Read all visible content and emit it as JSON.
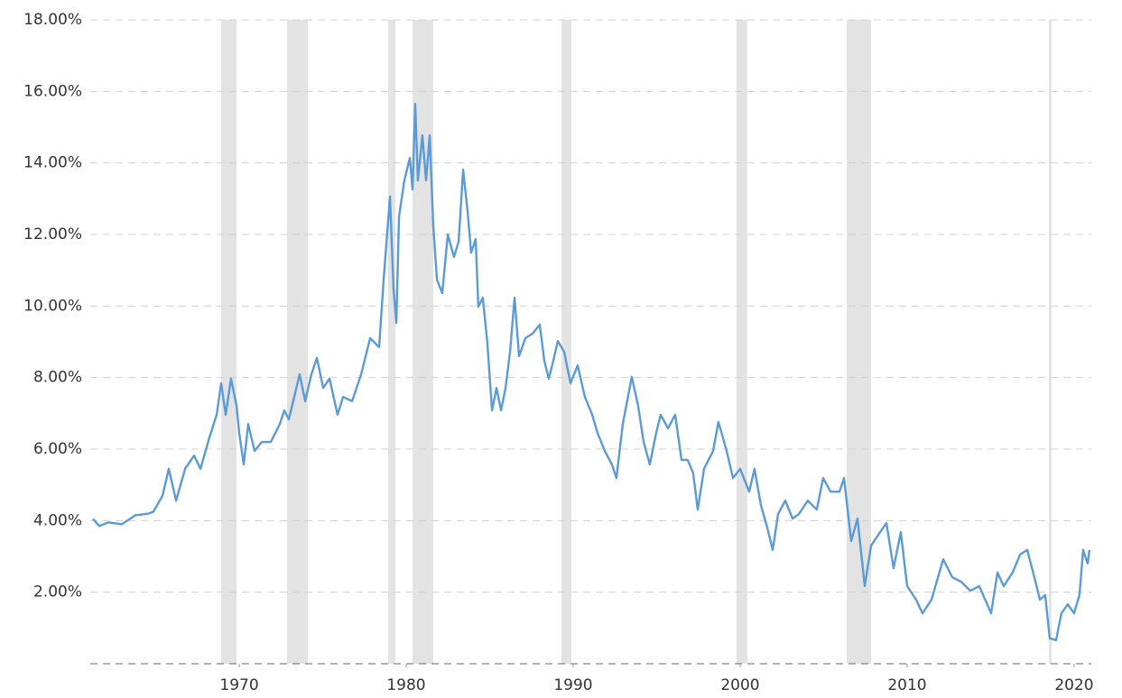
{
  "chart_data": {
    "type": "line",
    "color": "#5b9bd5",
    "band_color": "#e3e3e3",
    "grid": true,
    "xlim": [
      1961.08,
      2021.03
    ],
    "ylim": [
      0,
      18
    ],
    "xticks": [
      1970,
      1980,
      1990,
      2000,
      2010,
      2020
    ],
    "yticks": [
      {
        "value": 2,
        "label": "2.00%"
      },
      {
        "value": 4,
        "label": "4.00%"
      },
      {
        "value": 6,
        "label": "6.00%"
      },
      {
        "value": 8,
        "label": "8.00%"
      },
      {
        "value": 10,
        "label": "10.00%"
      },
      {
        "value": 12,
        "label": "12.00%"
      },
      {
        "value": 14,
        "label": "14.00%"
      },
      {
        "value": 16,
        "label": "16.00%"
      },
      {
        "value": 18,
        "label": "18.00%"
      }
    ],
    "bands": [
      [
        1968.92,
        1969.84
      ],
      [
        1972.86,
        1974.11
      ],
      [
        1978.92,
        1979.35
      ],
      [
        1980.38,
        1981.62
      ],
      [
        1989.3,
        1989.89
      ],
      [
        1999.78,
        2000.43
      ],
      [
        2006.38,
        2007.84
      ],
      [
        2018.49,
        2018.65
      ]
    ],
    "x": [
      1961.24,
      1961.62,
      1962.16,
      1962.97,
      1963.78,
      1964.59,
      1964.86,
      1965.41,
      1965.78,
      1966.22,
      1966.76,
      1967.3,
      1967.68,
      1968.22,
      1968.65,
      1968.92,
      1969.19,
      1969.51,
      1969.84,
      1970.0,
      1970.27,
      1970.54,
      1970.92,
      1971.35,
      1971.89,
      1972.43,
      1972.7,
      1972.97,
      1973.62,
      1973.95,
      1974.32,
      1974.65,
      1975.03,
      1975.41,
      1975.89,
      1976.22,
      1976.76,
      1977.3,
      1977.84,
      1978.38,
      1978.65,
      1979.03,
      1979.24,
      1979.41,
      1979.57,
      1979.89,
      1980.22,
      1980.38,
      1980.54,
      1980.7,
      1980.97,
      1981.19,
      1981.41,
      1981.62,
      1981.84,
      1982.16,
      1982.49,
      1982.86,
      1983.14,
      1983.41,
      1983.68,
      1983.89,
      1984.16,
      1984.32,
      1984.59,
      1984.86,
      1985.14,
      1985.41,
      1985.68,
      1985.95,
      1986.22,
      1986.49,
      1986.76,
      1987.14,
      1987.57,
      1988.0,
      1988.27,
      1988.54,
      1988.81,
      1989.08,
      1989.46,
      1989.84,
      1990.27,
      1990.7,
      1991.14,
      1991.46,
      1991.89,
      1992.32,
      1992.59,
      1992.97,
      1993.51,
      1993.89,
      1994.22,
      1994.59,
      1994.97,
      1995.24,
      1995.68,
      1996.11,
      1996.49,
      1996.86,
      1997.19,
      1997.46,
      1997.84,
      1998.38,
      1998.7,
      1999.19,
      1999.57,
      2000.0,
      2000.54,
      2000.86,
      2001.24,
      2001.62,
      2001.95,
      2002.27,
      2002.7,
      2003.14,
      2003.51,
      2004.05,
      2004.59,
      2004.97,
      2005.41,
      2005.95,
      2006.22,
      2006.65,
      2007.03,
      2007.46,
      2007.84,
      2008.38,
      2008.76,
      2009.19,
      2009.62,
      2010.0,
      2010.54,
      2010.92,
      2011.46,
      2012.16,
      2012.7,
      2013.24,
      2013.78,
      2014.32,
      2015.03,
      2015.41,
      2015.78,
      2016.32,
      2016.76,
      2017.19,
      2017.62,
      2017.95,
      2018.27,
      2018.54,
      2018.92,
      2019.24,
      2019.62,
      2020.0,
      2020.32,
      2020.54,
      2020.81,
      2020.92
    ],
    "values": [
      4.05,
      3.85,
      3.95,
      3.9,
      4.15,
      4.2,
      4.25,
      4.7,
      5.45,
      4.56,
      5.45,
      5.82,
      5.45,
      6.33,
      6.96,
      7.84,
      6.96,
      7.97,
      7.21,
      6.45,
      5.57,
      6.7,
      5.95,
      6.2,
      6.2,
      6.7,
      7.08,
      6.83,
      8.09,
      7.34,
      8.09,
      8.55,
      7.71,
      7.97,
      6.96,
      7.46,
      7.34,
      8.09,
      9.1,
      8.85,
      10.74,
      13.06,
      10.49,
      9.53,
      12.5,
      13.51,
      14.14,
      13.26,
      15.65,
      13.51,
      14.77,
      13.51,
      14.77,
      12.25,
      10.74,
      10.36,
      12.0,
      11.37,
      11.8,
      13.81,
      12.63,
      11.49,
      11.87,
      9.98,
      10.23,
      8.97,
      7.08,
      7.71,
      7.08,
      7.71,
      8.72,
      10.23,
      8.6,
      9.1,
      9.23,
      9.48,
      8.47,
      7.97,
      8.47,
      9.02,
      8.72,
      7.84,
      8.34,
      7.46,
      6.96,
      6.45,
      5.95,
      5.57,
      5.19,
      6.7,
      8.02,
      7.21,
      6.2,
      5.57,
      6.45,
      6.96,
      6.58,
      6.96,
      5.7,
      5.7,
      5.32,
      4.31,
      5.45,
      5.95,
      6.76,
      5.95,
      5.19,
      5.45,
      4.81,
      5.45,
      4.44,
      3.81,
      3.18,
      4.18,
      4.56,
      4.06,
      4.18,
      4.56,
      4.31,
      5.19,
      4.81,
      4.81,
      5.19,
      3.43,
      4.06,
      2.17,
      3.3,
      3.68,
      3.93,
      2.67,
      3.68,
      2.17,
      1.79,
      1.41,
      1.79,
      2.92,
      2.42,
      2.29,
      2.04,
      2.17,
      1.41,
      2.55,
      2.17,
      2.55,
      3.05,
      3.18,
      2.42,
      1.79,
      1.92,
      0.71,
      0.66,
      1.41,
      1.66,
      1.41,
      1.92,
      3.18,
      2.8,
      3.18
    ]
  }
}
